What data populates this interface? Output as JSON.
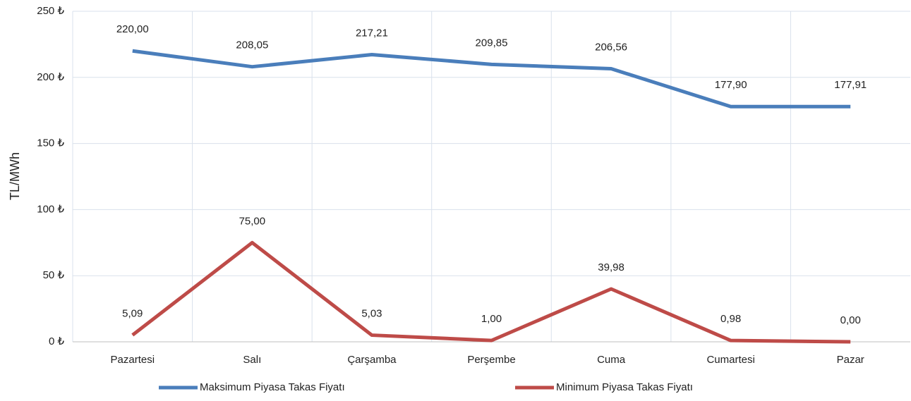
{
  "chart_data": {
    "type": "line",
    "y_label": "TL/MWh",
    "categories": [
      "Pazartesi",
      "Salı",
      "Çarşamba",
      "Perşembe",
      "Cuma",
      "Cumartesi",
      "Pazar"
    ],
    "series": [
      {
        "name": "Maksimum Piyasa Takas Fiyatı",
        "color": "#4a7ebb",
        "values": [
          220.0,
          208.05,
          217.21,
          209.85,
          206.56,
          177.9,
          177.91
        ],
        "value_labels": [
          "220,00",
          "208,05",
          "217,21",
          "209,85",
          "206,56",
          "177,90",
          "177,91"
        ]
      },
      {
        "name": "Minimum Piyasa Takas Fiyatı",
        "color": "#be4b48",
        "values": [
          5.09,
          75.0,
          5.03,
          1.0,
          39.98,
          0.98,
          0.0
        ],
        "value_labels": [
          "5,09",
          "75,00",
          "5,03",
          "1,00",
          "39,98",
          "0,98",
          "0,00"
        ]
      }
    ],
    "ylim": [
      0,
      250
    ],
    "yticks": [
      {
        "value": 0,
        "label": "0 ₺"
      },
      {
        "value": 50,
        "label": "50 ₺"
      },
      {
        "value": 100,
        "label": "100 ₺"
      },
      {
        "value": 150,
        "label": "150 ₺"
      },
      {
        "value": 200,
        "label": "200 ₺"
      },
      {
        "value": 250,
        "label": "250 ₺"
      }
    ],
    "grid": true,
    "legend": "bottom"
  }
}
